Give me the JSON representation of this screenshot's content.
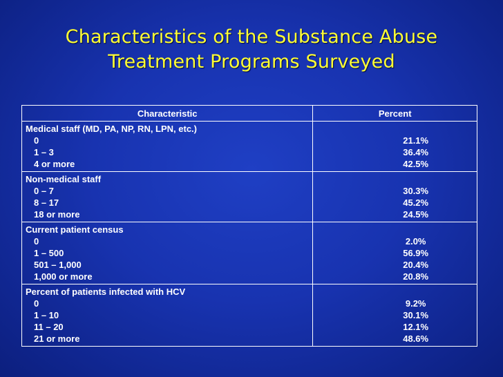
{
  "title": {
    "line1": "Characteristics of the Substance Abuse",
    "line2": "Treatment Programs Surveyed"
  },
  "table": {
    "headers": {
      "characteristic": "Characteristic",
      "percent": "Percent"
    },
    "groups": [
      {
        "heading": "Medical staff (MD, PA, NP, RN, LPN, etc.)",
        "rows": [
          {
            "label": "0",
            "value": "21.1%"
          },
          {
            "label": "1 – 3",
            "value": "36.4%"
          },
          {
            "label": "4 or more",
            "value": "42.5%"
          }
        ]
      },
      {
        "heading": "Non-medical staff",
        "rows": [
          {
            "label": "0 – 7",
            "value": "30.3%"
          },
          {
            "label": "8 – 17",
            "value": "45.2%"
          },
          {
            "label": "18 or more",
            "value": "24.5%"
          }
        ]
      },
      {
        "heading": "Current patient census",
        "rows": [
          {
            "label": "0",
            "value": "2.0%"
          },
          {
            "label": "1 – 500",
            "value": "56.9%"
          },
          {
            "label": "501 – 1,000",
            "value": "20.4%"
          },
          {
            "label": "1,000 or more",
            "value": "20.8%"
          }
        ]
      },
      {
        "heading": "Percent of patients infected with HCV",
        "rows": [
          {
            "label": "0",
            "value": "9.2%"
          },
          {
            "label": "1 – 10",
            "value": "30.1%"
          },
          {
            "label": "11 – 20",
            "value": "12.1%"
          },
          {
            "label": "21 or more",
            "value": "48.6%"
          }
        ]
      }
    ]
  }
}
